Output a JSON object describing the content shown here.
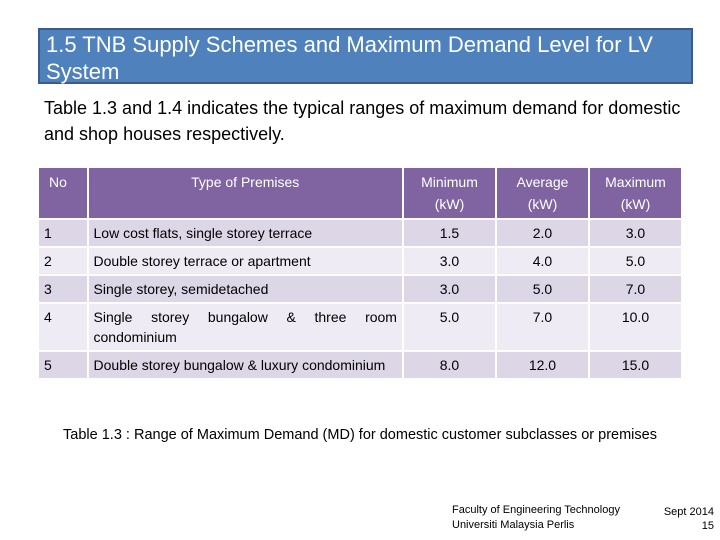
{
  "slide": {
    "title": "1.5 TNB Supply Schemes and Maximum Demand Level for LV System",
    "intro": "Table 1.3 and 1.4 indicates the typical ranges of maximum demand for domestic and shop houses respectively."
  },
  "table": {
    "headers": {
      "no": "No",
      "type": "Type of Premises",
      "minimum": "Minimum (kW)",
      "average": "Average (kW)",
      "maximum": "Maximum (kW)"
    },
    "rows": [
      {
        "no": "1",
        "type": "Low cost flats, single storey terrace",
        "min": "1.5",
        "avg": "2.0",
        "max": "3.0"
      },
      {
        "no": "2",
        "type": "Double storey terrace or apartment",
        "min": "3.0",
        "avg": "4.0",
        "max": "5.0"
      },
      {
        "no": "3",
        "type": "Single storey, semidetached",
        "min": "3.0",
        "avg": "5.0",
        "max": "7.0"
      },
      {
        "no": "4",
        "type": "Single storey bungalow & three room condominium",
        "min": "5.0",
        "avg": "7.0",
        "max": "10.0"
      },
      {
        "no": "5",
        "type": "Double storey bungalow & luxury condominium",
        "min": "8.0",
        "avg": "12.0",
        "max": "15.0"
      }
    ],
    "caption": "Table 1.3 : Range of Maximum Demand (MD) for domestic customer subclasses or premises"
  },
  "footer": {
    "faculty": "Faculty of Engineering Technology",
    "university": "Universiti Malaysia Perlis",
    "date": "Sept 2014",
    "page": "15"
  }
}
